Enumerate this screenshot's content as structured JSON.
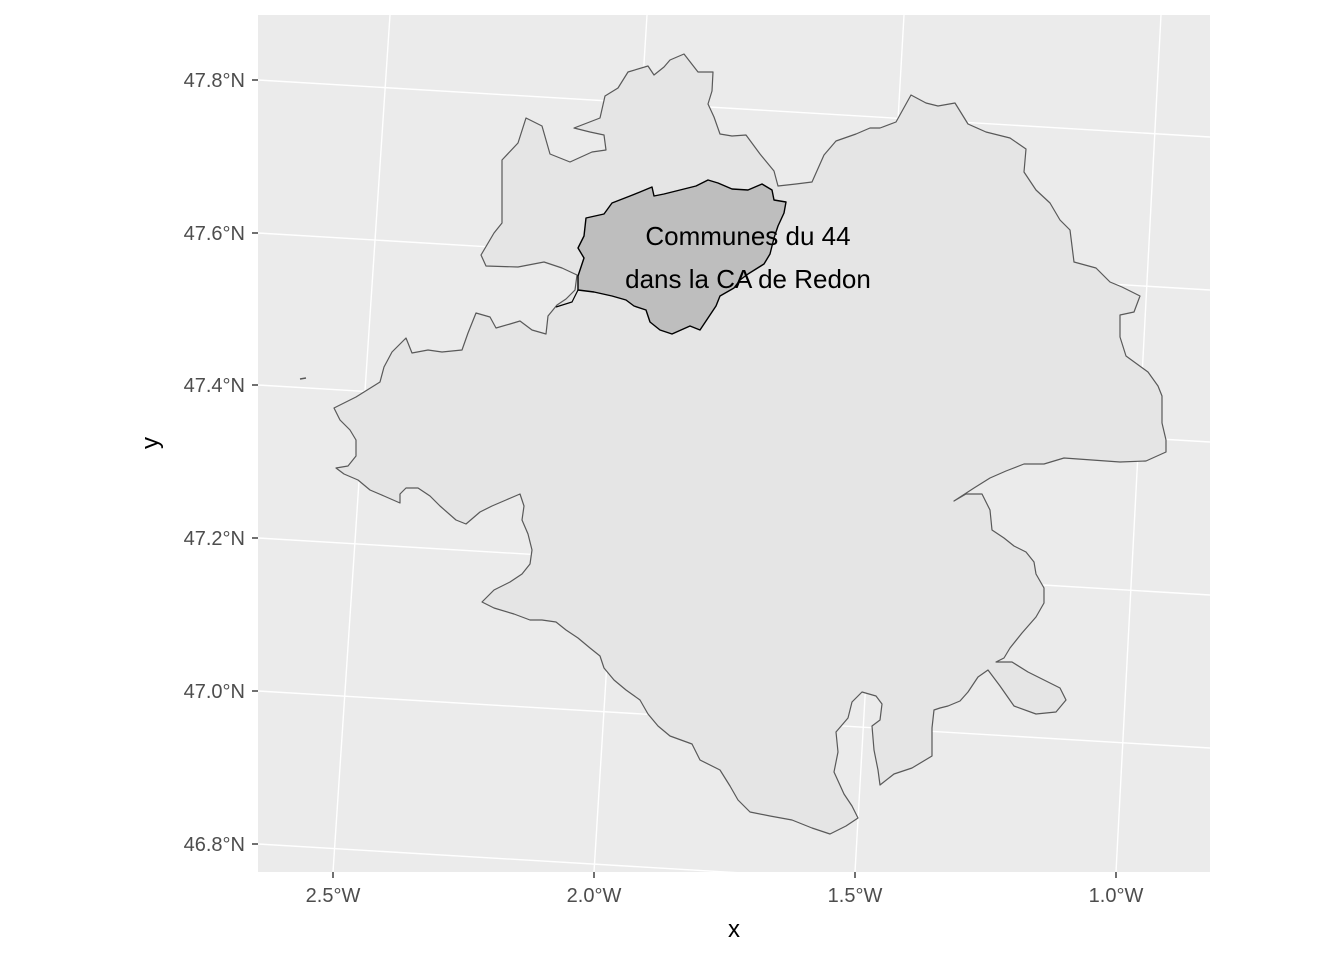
{
  "map": {
    "xlabel": "x",
    "ylabel": "y",
    "lon_labels": [
      "2.5°W",
      "2.0°W",
      "1.5°W",
      "1.0°W"
    ],
    "lat_labels": [
      "47.8°N",
      "47.6°N",
      "47.4°N",
      "47.2°N",
      "47.0°N",
      "46.8°N"
    ],
    "annotation": {
      "line1": "Communes du 44",
      "line2": "dans la CA de Redon"
    },
    "colors": {
      "panel": "#ebebeb",
      "grid": "#ffffff",
      "region_fill": "#e5e5e5",
      "region_stroke": "#595959",
      "highlight_fill": "#bebebe",
      "highlight_stroke": "#000000"
    }
  }
}
